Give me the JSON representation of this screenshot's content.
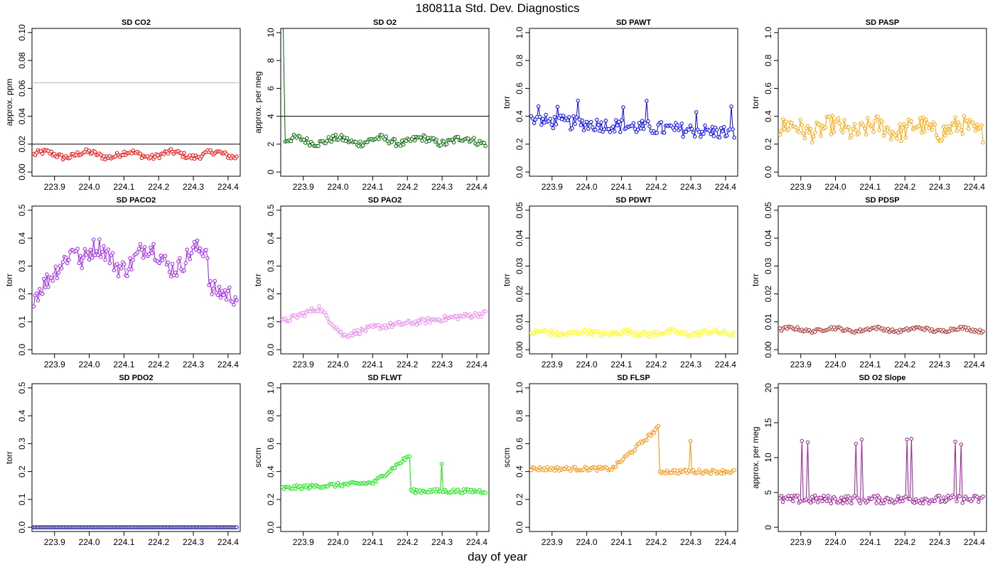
{
  "page": {
    "title": "180811a   Std. Dev. Diagnostics",
    "xlabel": "day of year"
  },
  "chart_data": [
    {
      "type": "line",
      "title": "SD CO2",
      "ylabel": "approx. ppm",
      "xlim": [
        223.835,
        224.435
      ],
      "xticks": [
        "223.9",
        "224.0",
        "224.1",
        "224.2",
        "224.3",
        "224.4"
      ],
      "ylim": [
        -0.003,
        0.103
      ],
      "yticks": [
        "0.00",
        "0.02",
        "0.04",
        "0.06",
        "0.08",
        "0.10"
      ],
      "color": "#ff0000",
      "hlines": [
        {
          "y": 0.064,
          "color": "#bbbbbb"
        },
        {
          "y": 0.02,
          "color": "#000000"
        }
      ],
      "points": {
        "start": 223.84,
        "end": 224.425,
        "base": 0.0125,
        "amp": 0.002,
        "noise": 0.002,
        "shape": "flat"
      }
    },
    {
      "type": "line",
      "title": "SD O2",
      "ylabel": "approx. per meg",
      "xlim": [
        223.835,
        224.435
      ],
      "xticks": [
        "223.9",
        "224.0",
        "224.1",
        "224.2",
        "224.3",
        "224.4"
      ],
      "ylim": [
        -0.3,
        10.3
      ],
      "yticks": [
        "0",
        "2",
        "4",
        "6",
        "8",
        "10"
      ],
      "color": "#006400",
      "hlines": [
        {
          "y": 4,
          "color": "#000000"
        }
      ],
      "spike": {
        "x": 223.842,
        "y": 10.5
      },
      "points": {
        "start": 223.848,
        "end": 224.425,
        "base": 2.25,
        "amp": 0.2,
        "noise": 0.25,
        "shape": "flat"
      }
    },
    {
      "type": "line",
      "title": "SD PAWT",
      "ylabel": "torr",
      "xlim": [
        223.835,
        224.435
      ],
      "xticks": [
        "223.9",
        "224.0",
        "224.1",
        "224.2",
        "224.3",
        "224.4"
      ],
      "ylim": [
        -0.03,
        1.03
      ],
      "yticks": [
        "0.0",
        "0.2",
        "0.4",
        "0.6",
        "0.8",
        "1.0"
      ],
      "color": "#0000ff",
      "points": {
        "start": 223.84,
        "end": 224.425,
        "base": 0.33,
        "amp": -0.05,
        "noise": 0.05,
        "shape": "decline"
      }
    },
    {
      "type": "line",
      "title": "SD PASP",
      "ylabel": "torr",
      "xlim": [
        223.835,
        224.435
      ],
      "xticks": [
        "223.9",
        "224.0",
        "224.1",
        "224.2",
        "224.3",
        "224.4"
      ],
      "ylim": [
        -0.03,
        1.03
      ],
      "yticks": [
        "0.0",
        "0.2",
        "0.4",
        "0.6",
        "0.8",
        "1.0"
      ],
      "color": "#ffa500",
      "points": {
        "start": 223.84,
        "end": 224.425,
        "base": 0.31,
        "amp": 0.03,
        "noise": 0.07,
        "shape": "flat"
      }
    },
    {
      "type": "line",
      "title": "SD PACO2",
      "ylabel": "torr",
      "xlim": [
        223.835,
        224.435
      ],
      "xticks": [
        "223.9",
        "224.0",
        "224.1",
        "224.2",
        "224.3",
        "224.4"
      ],
      "ylim": [
        -0.015,
        0.515
      ],
      "yticks": [
        "0.0",
        "0.1",
        "0.2",
        "0.3",
        "0.4",
        "0.5"
      ],
      "color": "#a020f0",
      "points": {
        "start": 223.84,
        "end": 224.425,
        "base": 0.33,
        "amp": 0.05,
        "noise": 0.035,
        "shape": "hump"
      }
    },
    {
      "type": "line",
      "title": "SD PAO2",
      "ylabel": "torr",
      "xlim": [
        223.835,
        224.435
      ],
      "xticks": [
        "223.9",
        "224.0",
        "224.1",
        "224.2",
        "224.3",
        "224.4"
      ],
      "ylim": [
        -0.015,
        0.515
      ],
      "yticks": [
        "0.0",
        "0.1",
        "0.2",
        "0.3",
        "0.4",
        "0.5"
      ],
      "color": "#ee82ee",
      "points": {
        "start": 223.84,
        "end": 224.425,
        "base": 0.09,
        "amp": 0.04,
        "noise": 0.01,
        "shape": "wave"
      }
    },
    {
      "type": "line",
      "title": "SD PDWT",
      "ylabel": "torr",
      "xlim": [
        223.835,
        224.435
      ],
      "xticks": [
        "223.9",
        "224.0",
        "224.1",
        "224.2",
        "224.3",
        "224.4"
      ],
      "ylim": [
        -0.0015,
        0.0515
      ],
      "yticks": [
        "0.00",
        "0.01",
        "0.02",
        "0.03",
        "0.04",
        "0.05"
      ],
      "color": "#ffff00",
      "points": {
        "start": 223.84,
        "end": 224.425,
        "base": 0.006,
        "amp": 0.0005,
        "noise": 0.001,
        "shape": "flat"
      }
    },
    {
      "type": "line",
      "title": "SD PDSP",
      "ylabel": "torr",
      "xlim": [
        223.835,
        224.435
      ],
      "xticks": [
        "223.9",
        "224.0",
        "224.1",
        "224.2",
        "224.3",
        "224.4"
      ],
      "ylim": [
        -0.0015,
        0.0515
      ],
      "yticks": [
        "0.00",
        "0.01",
        "0.02",
        "0.03",
        "0.04",
        "0.05"
      ],
      "color": "#a52a2a",
      "points": {
        "start": 223.84,
        "end": 224.425,
        "base": 0.0072,
        "amp": 0.0006,
        "noise": 0.0006,
        "shape": "flat"
      }
    },
    {
      "type": "line",
      "title": "SD PDO2",
      "ylabel": "torr",
      "xlim": [
        223.835,
        224.435
      ],
      "xticks": [
        "223.9",
        "224.0",
        "224.1",
        "224.2",
        "224.3",
        "224.4"
      ],
      "ylim": [
        -0.015,
        0.515
      ],
      "yticks": [
        "0.0",
        "0.1",
        "0.2",
        "0.3",
        "0.4",
        "0.5"
      ],
      "color": "#00008b",
      "points": {
        "start": 223.84,
        "end": 224.425,
        "base": 0.0,
        "amp": 0,
        "noise": 0,
        "shape": "flat"
      }
    },
    {
      "type": "line",
      "title": "SD FLWT",
      "ylabel": "sccm",
      "xlim": [
        223.835,
        224.435
      ],
      "xticks": [
        "223.9",
        "224.0",
        "224.1",
        "224.2",
        "224.3",
        "224.4"
      ],
      "ylim": [
        -0.03,
        1.03
      ],
      "yticks": [
        "0.0",
        "0.2",
        "0.4",
        "0.6",
        "0.8",
        "1.0"
      ],
      "color": "#00ee00",
      "points": {
        "start": 223.84,
        "end": 224.425,
        "base": 0.28,
        "amp": 0.0,
        "noise": 0.015,
        "shape": "flwt"
      }
    },
    {
      "type": "line",
      "title": "SD FLSP",
      "ylabel": "sccm",
      "xlim": [
        223.835,
        224.435
      ],
      "xticks": [
        "223.9",
        "224.0",
        "224.1",
        "224.2",
        "224.3",
        "224.4"
      ],
      "ylim": [
        -0.03,
        1.03
      ],
      "yticks": [
        "0.0",
        "0.2",
        "0.4",
        "0.6",
        "0.8",
        "1.0"
      ],
      "color": "#ff8c00",
      "points": {
        "start": 223.84,
        "end": 224.425,
        "base": 0.42,
        "amp": 0.0,
        "noise": 0.015,
        "shape": "flsp"
      }
    },
    {
      "type": "line",
      "title": "SD O2 Slope",
      "ylabel": "approx. per meg",
      "xlim": [
        223.835,
        224.435
      ],
      "xticks": [
        "223.9",
        "224.0",
        "224.1",
        "224.2",
        "224.3",
        "224.4"
      ],
      "ylim": [
        -0.6,
        20.6
      ],
      "yticks": [
        "0",
        "5",
        "10",
        "15",
        "20"
      ],
      "color": "#9b1b9b",
      "points": {
        "start": 223.84,
        "end": 224.425,
        "base": 4.0,
        "amp": 0.5,
        "noise": 0.6,
        "shape": "slope"
      }
    }
  ]
}
